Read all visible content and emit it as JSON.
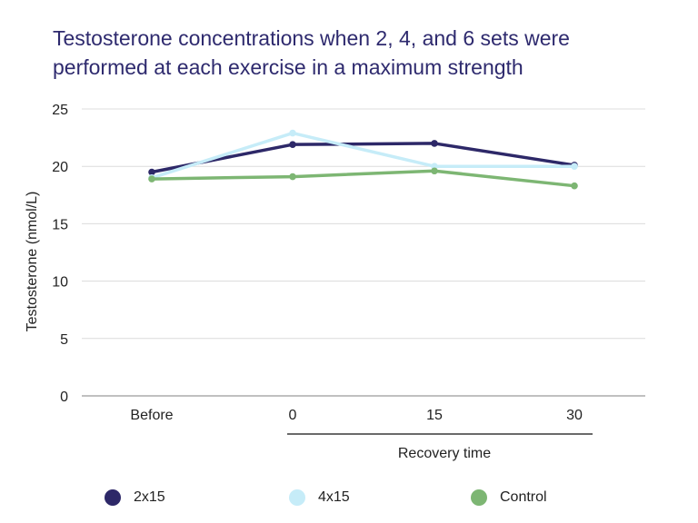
{
  "chart_data": {
    "type": "line",
    "title": "Testosterone concentrations when 2, 4, and 6 sets were performed at each exercise in a maximum strength",
    "xlabel": "Recovery time",
    "ylabel": "Testosterone (nmol/L)",
    "categories": [
      "Before",
      "0",
      "15",
      "30"
    ],
    "ylim": [
      0,
      25
    ],
    "yticks": [
      "0",
      "5",
      "10",
      "15",
      "20",
      "25"
    ],
    "grid": true,
    "legend_position": "bottom",
    "series": [
      {
        "name": "2x15",
        "color": "#2d2868",
        "values": [
          19.5,
          21.9,
          22.0,
          20.1
        ]
      },
      {
        "name": "4x15",
        "color": "#c6ecf8",
        "values": [
          19.0,
          22.9,
          20.0,
          20.0
        ]
      },
      {
        "name": "Control",
        "color": "#7db673",
        "values": [
          18.9,
          19.1,
          19.6,
          18.3
        ]
      }
    ]
  }
}
